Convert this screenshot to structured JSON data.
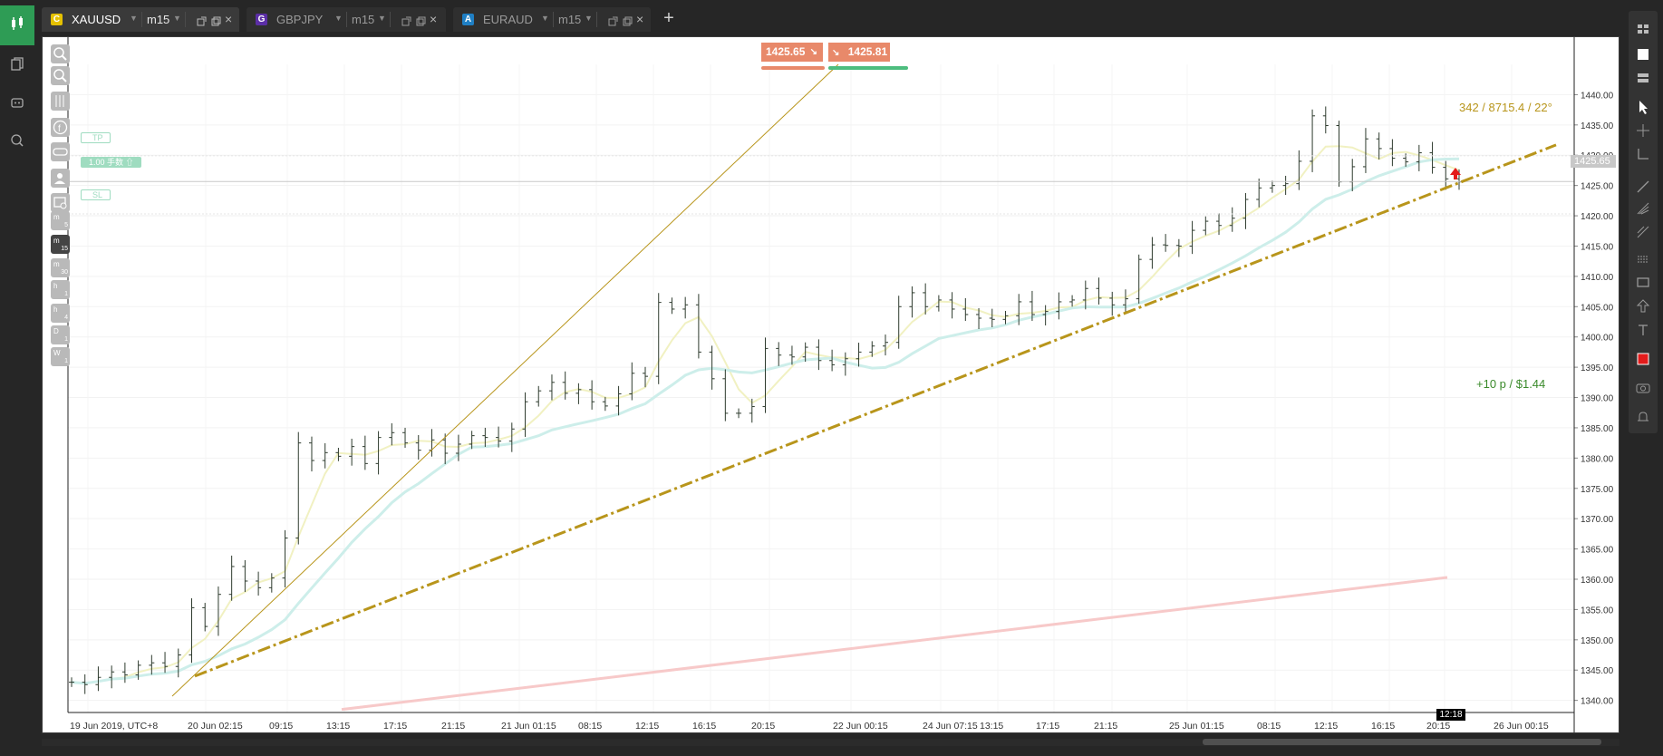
{
  "tabs": [
    {
      "symbol": "XAUUSD",
      "badge": "C",
      "badge_color": "#e5c100",
      "timeframe": "m15",
      "active": true
    },
    {
      "symbol": "GBPJPY",
      "badge": "G",
      "badge_color": "#5b2ea6",
      "timeframe": "m15",
      "active": false
    },
    {
      "symbol": "EURAUD",
      "badge": "A",
      "badge_color": "#1f7fc4",
      "timeframe": "m15",
      "active": false
    }
  ],
  "timeframe_buttons": [
    {
      "unit": "m",
      "n": "5"
    },
    {
      "unit": "m",
      "n": "15"
    },
    {
      "unit": "m",
      "n": "30"
    },
    {
      "unit": "h",
      "n": "1"
    },
    {
      "unit": "h",
      "n": "4"
    },
    {
      "unit": "D",
      "n": "1"
    },
    {
      "unit": "W",
      "n": "1"
    }
  ],
  "quote": {
    "sell": "1425.65",
    "buy": "1425.81",
    "sell_color": "#e8896a",
    "buy_color": "#e8896a",
    "sell_bar_color": "#e8896a",
    "buy_bar_color": "#4dbd7e"
  },
  "order_tags": {
    "tp": "TP",
    "position": "1.00 手数 ⇧",
    "sl": "SL"
  },
  "annotations": {
    "trend_info": "342 / 8715.4 / 22°",
    "pnl": "+10 p /  $1.44",
    "current_price": "1425.65",
    "crosshair_time": "12:18"
  },
  "colors": {
    "accent_green": "#2e9c55",
    "trend_gold": "#b8951b",
    "pnl_green": "#3a8a2a",
    "candle": "#2e3b2e",
    "ma_red": "#f7c9c9",
    "ma_teal": "#cdeeea",
    "ma_yellow": "#f1f1c2"
  },
  "icons": [
    "candles-icon",
    "layouts-icon",
    "bot-icon",
    "search-chart-icon",
    "zoom-in-icon",
    "zoom-out-icon",
    "indicators-icon",
    "facebook-icon",
    "link-icon",
    "person-icon",
    "settings-icon",
    "grid-icon",
    "window-icon",
    "panel-icon",
    "cursor-icon",
    "crosshair-icon",
    "measure-icon",
    "line-icon",
    "fib-icon",
    "pitchfork-icon",
    "channel-icon",
    "rectangle-icon",
    "arrow-icon",
    "text-icon",
    "color-icon",
    "camera-icon",
    "alert-icon"
  ],
  "chart_data": {
    "type": "line",
    "title": "",
    "xlabel": "",
    "ylabel": "",
    "ylim": [
      1338,
      1445
    ],
    "y_ticks": [
      "1440.00",
      "1435.00",
      "1430.00",
      "1425.00",
      "1420.00",
      "1415.00",
      "1410.00",
      "1405.00",
      "1400.00",
      "1395.00",
      "1390.00",
      "1385.00",
      "1380.00",
      "1375.00",
      "1370.00",
      "1365.00",
      "1360.00",
      "1355.00",
      "1350.00",
      "1345.00",
      "1340.00"
    ],
    "x_ticks": [
      "19 Jun 2019, UTC+8",
      "20 Jun 02:15",
      "09:15",
      "13:15",
      "17:15",
      "21:15",
      "21 Jun 01:15",
      "08:15",
      "12:15",
      "16:15",
      "20:15",
      "22 Jun 00:15",
      "24 Jun 07:15",
      "13:15",
      "17:15",
      "21:15",
      "25 Jun 01:15",
      "08:15",
      "12:15",
      "16:15",
      "20:15",
      "26 Jun 00:15"
    ],
    "series": [
      {
        "close": [
          1343.0,
          1342.6,
          1343.8,
          1344.7,
          1344.2,
          1345.8,
          1346.2,
          1345.6,
          1347.5,
          1355.3,
          1352.2,
          1357.5,
          1362.1,
          1359.7,
          1358.6,
          1360.2,
          1366.8,
          1382.5,
          1379.6,
          1380.9,
          1380.3,
          1381.9,
          1379.1,
          1383.4,
          1384.2,
          1382.5,
          1381.3,
          1383.0,
          1380.8,
          1382.3,
          1383.7,
          1383.4,
          1382.8,
          1384.8,
          1389.3,
          1391.1,
          1392.5,
          1390.7,
          1391.3,
          1389.3,
          1388.6,
          1390.6,
          1394.0,
          1393.5,
          1405.7,
          1404.6,
          1405.3,
          1397.5,
          1393.1,
          1387.4,
          1387.4,
          1388.5,
          1398.1,
          1397.0,
          1396.7,
          1398.3,
          1396.1,
          1395.4,
          1396.4,
          1397.5,
          1398.5,
          1399.1,
          1405.0,
          1407.3,
          1405.0,
          1406.1,
          1404.6,
          1403.7,
          1403.1,
          1402.9,
          1403.5,
          1405.8,
          1403.7,
          1404.2,
          1405.8,
          1406.1,
          1408.0,
          1406.4,
          1405.3,
          1406.3,
          1412.8,
          1415.2,
          1415.1,
          1415.0,
          1417.6,
          1419.1,
          1418.4,
          1419.6,
          1422.7,
          1424.6,
          1425.0,
          1425.3,
          1429.0,
          1436.5,
          1434.9,
          1425.6,
          1428.1,
          1432.7,
          1431.1,
          1429.5,
          1428.9,
          1430.4,
          1428.0,
          1426.1,
          1425.6
        ]
      },
      {
        "name": "",
        "points": [
          [
            0,
            1341
          ],
          [
            1,
            1342
          ],
          [
            2,
            1340.5
          ]
        ]
      }
    ],
    "current_price": 1425.65,
    "trendlines": [
      {
        "style": "dash-dot",
        "from": [
          "20 Jun 02:15",
          1345.0
        ],
        "to": [
          "26 Jun 00:15",
          1432.0
        ]
      },
      {
        "style": "solid-thin",
        "from": [
          "20 Jun 02:15",
          1343.0
        ],
        "to": [
          "21 Jun 08:15",
          1443.0
        ]
      }
    ],
    "grid": true,
    "legend": "none"
  }
}
